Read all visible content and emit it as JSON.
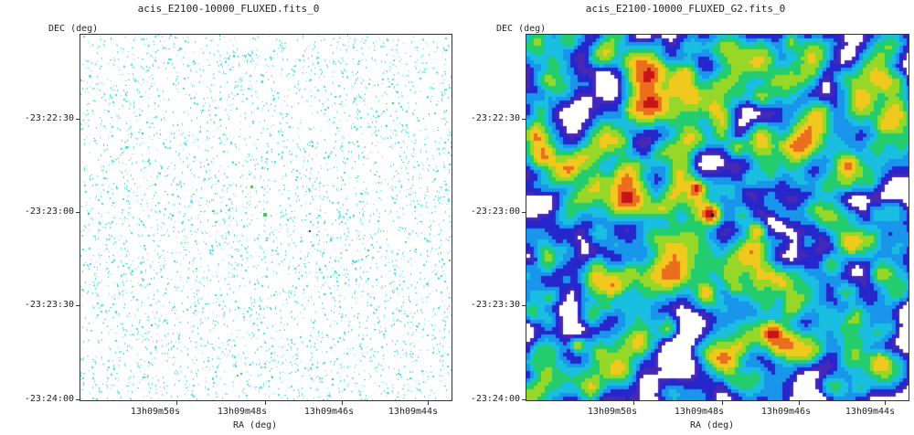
{
  "panels": [
    {
      "title": "acis_E2100-10000_FLUXED.fits_0",
      "dec_label": "DEC  (deg)",
      "ra_label": "RA (deg)",
      "y_ticks": [
        "-23:22:30",
        "-23:23:00",
        "-23:23:30",
        "-23:24:00"
      ],
      "x_ticks": [
        "13h09m50s",
        "13h09m48s",
        "13h09m46s",
        "13h09m44s"
      ],
      "image_style": "sparse-counts"
    },
    {
      "title": "acis_E2100-10000_FLUXED_G2.fits_0",
      "dec_label": "DEC  (deg)",
      "ra_label": "RA (deg)",
      "y_ticks": [
        "-23:22:30",
        "-23:23:00",
        "-23:23:30",
        "-23:24:00"
      ],
      "x_ticks": [
        "13h09m50s",
        "13h09m48s",
        "13h09m46s",
        "13h09m44s"
      ],
      "image_style": "smoothed-colormap"
    }
  ],
  "colors": {
    "sparse_pixel": "#3fd7e0",
    "sparse_bright": "#39c24a",
    "smooth_low": "#2626c8",
    "smooth_mid": "#19b8e8",
    "smooth_high": "#22d060",
    "smooth_peak": "#f0d020",
    "smooth_max": "#e01818"
  }
}
